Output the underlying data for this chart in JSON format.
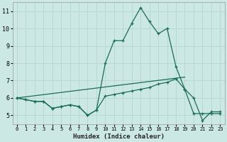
{
  "xlabel": "Humidex (Indice chaleur)",
  "ylabel": "",
  "bg_color": "#cce8e4",
  "grid_color": "#b8d8d4",
  "line_color": "#1a6b5a",
  "xlim": [
    -0.5,
    23.5
  ],
  "ylim": [
    4.5,
    11.5
  ],
  "xticks": [
    0,
    1,
    2,
    3,
    4,
    5,
    6,
    7,
    8,
    9,
    10,
    11,
    12,
    13,
    14,
    15,
    16,
    17,
    18,
    19,
    20,
    21,
    22,
    23
  ],
  "yticks": [
    5,
    6,
    7,
    8,
    9,
    10,
    11
  ],
  "series1_x": [
    0,
    1,
    2,
    3,
    4,
    5,
    6,
    7,
    8,
    9,
    10,
    11,
    12,
    13,
    14,
    15,
    16,
    17,
    18,
    19,
    20,
    21,
    22,
    23
  ],
  "series1_y": [
    6.0,
    5.9,
    5.8,
    5.8,
    5.4,
    5.5,
    5.6,
    5.5,
    5.0,
    5.3,
    8.0,
    9.3,
    9.3,
    10.3,
    11.2,
    10.4,
    9.7,
    10.0,
    7.8,
    6.5,
    6.0,
    4.7,
    5.2,
    5.2
  ],
  "series2_x": [
    0,
    1,
    2,
    3,
    4,
    5,
    6,
    7,
    8,
    9,
    10,
    11,
    12,
    13,
    14,
    15,
    16,
    17,
    18,
    19,
    20,
    21,
    22,
    23
  ],
  "series2_y": [
    6.0,
    5.9,
    5.8,
    5.8,
    5.4,
    5.5,
    5.6,
    5.5,
    5.0,
    5.3,
    6.1,
    6.2,
    6.3,
    6.4,
    6.5,
    6.6,
    6.8,
    6.9,
    7.1,
    6.5,
    5.1,
    5.1,
    5.1,
    5.1
  ],
  "series3_x": [
    0,
    19
  ],
  "series3_y": [
    6.0,
    7.2
  ]
}
